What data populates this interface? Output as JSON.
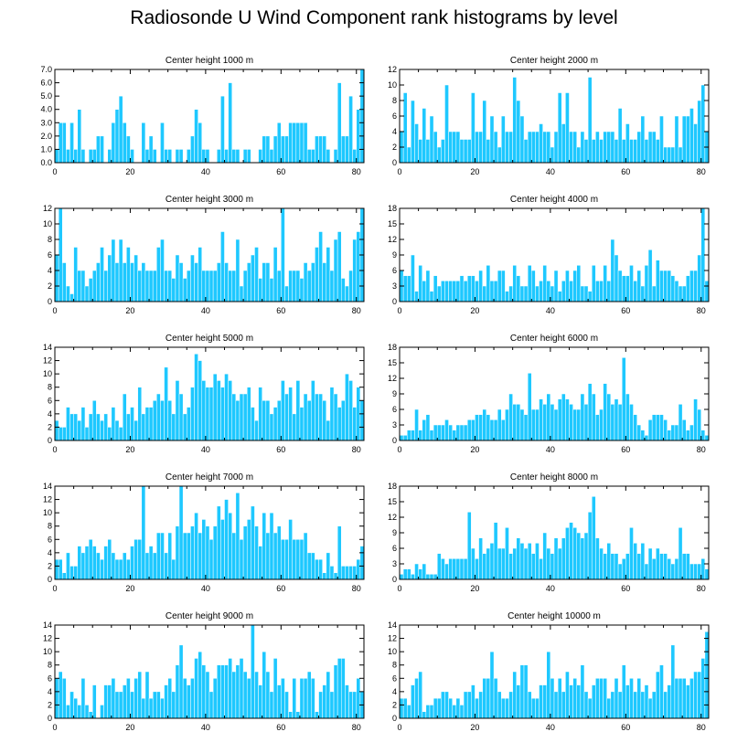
{
  "figure_title": "Radiosonde U Wind Component rank histograms by level",
  "colors": {
    "bar": "#1ec8ff",
    "bar_edge": "#ffffff",
    "axis": "#000000",
    "background": "#ffffff"
  },
  "chart_data": [
    {
      "type": "bar",
      "title": "Center height 1000 m",
      "xlim": [
        0,
        82
      ],
      "ylim": [
        0,
        7
      ],
      "xticks": [
        0,
        20,
        40,
        60,
        80
      ],
      "yticks": [
        0,
        1,
        2,
        3,
        4,
        5,
        6,
        7
      ],
      "ytick_labels": [
        "0.0",
        "1.0",
        "2.0",
        "3.0",
        "4.0",
        "5.0",
        "6.0",
        "7.0"
      ],
      "values": [
        1,
        3,
        3,
        1,
        3,
        1,
        4,
        1,
        0,
        1,
        1,
        2,
        2,
        0,
        1,
        3,
        4,
        5,
        3,
        2,
        1,
        0,
        0,
        3,
        1,
        2,
        1,
        0,
        3,
        1,
        1,
        0,
        1,
        1,
        0,
        1,
        2,
        4,
        3,
        1,
        1,
        0,
        0,
        1,
        5,
        1,
        6,
        1,
        1,
        0,
        1,
        1,
        0,
        0,
        1,
        2,
        2,
        1,
        2,
        3,
        2,
        2,
        3,
        3,
        3,
        3,
        3,
        1,
        1,
        2,
        2,
        2,
        1,
        0,
        1,
        6,
        2,
        2,
        5,
        1,
        4,
        7
      ]
    },
    {
      "type": "bar",
      "title": "Center height 2000 m",
      "xlim": [
        0,
        82
      ],
      "ylim": [
        0,
        12
      ],
      "xticks": [
        0,
        20,
        40,
        60,
        80
      ],
      "yticks": [
        0,
        2,
        4,
        6,
        8,
        10,
        12
      ],
      "ytick_labels": [
        "0",
        "2",
        "4",
        "6",
        "8",
        "10",
        "12"
      ],
      "values": [
        4,
        9,
        2,
        8,
        5,
        3,
        7,
        3,
        6,
        4,
        2,
        3,
        10,
        4,
        4,
        4,
        3,
        3,
        3,
        9,
        4,
        4,
        8,
        3,
        6,
        4,
        2,
        6,
        4,
        4,
        11,
        8,
        6,
        3,
        4,
        4,
        4,
        5,
        4,
        4,
        2,
        4,
        9,
        5,
        9,
        4,
        4,
        2,
        4,
        3,
        11,
        3,
        4,
        3,
        4,
        4,
        4,
        3,
        7,
        3,
        5,
        3,
        3,
        4,
        6,
        3,
        4,
        4,
        3,
        6,
        2,
        2,
        2,
        6,
        2,
        6,
        6,
        7,
        5,
        8,
        10,
        4
      ]
    },
    {
      "type": "bar",
      "title": "Center height 3000 m",
      "xlim": [
        0,
        82
      ],
      "ylim": [
        0,
        12
      ],
      "xticks": [
        0,
        20,
        40,
        60,
        80
      ],
      "yticks": [
        0,
        2,
        4,
        6,
        8,
        10,
        12
      ],
      "ytick_labels": [
        "0",
        "2",
        "4",
        "6",
        "8",
        "10",
        "12"
      ],
      "values": [
        6,
        12,
        5,
        2,
        1,
        7,
        4,
        4,
        2,
        3,
        4,
        5,
        7,
        4,
        6,
        8,
        5,
        8,
        5,
        7,
        5,
        6,
        4,
        5,
        4,
        4,
        4,
        7,
        8,
        4,
        4,
        3,
        6,
        5,
        3,
        4,
        6,
        5,
        7,
        4,
        4,
        4,
        4,
        5,
        9,
        5,
        4,
        4,
        8,
        2,
        4,
        5,
        6,
        7,
        3,
        5,
        5,
        3,
        7,
        4,
        12,
        2,
        4,
        4,
        4,
        3,
        5,
        4,
        5,
        7,
        9,
        5,
        7,
        4,
        8,
        9,
        3,
        2,
        4,
        8,
        9,
        12
      ]
    },
    {
      "type": "bar",
      "title": "Center height 4000 m",
      "xlim": [
        0,
        82
      ],
      "ylim": [
        0,
        18
      ],
      "xticks": [
        0,
        20,
        40,
        60,
        80
      ],
      "yticks": [
        0,
        3,
        6,
        9,
        12,
        15,
        18
      ],
      "ytick_labels": [
        "0",
        "3",
        "6",
        "9",
        "12",
        "15",
        "18"
      ],
      "values": [
        6,
        5,
        5,
        9,
        2,
        7,
        4,
        6,
        2,
        5,
        3,
        4,
        4,
        4,
        4,
        4,
        5,
        4,
        5,
        5,
        4,
        6,
        3,
        7,
        4,
        4,
        6,
        6,
        2,
        3,
        7,
        5,
        3,
        3,
        7,
        6,
        3,
        4,
        7,
        4,
        3,
        6,
        2,
        4,
        6,
        4,
        6,
        7,
        3,
        3,
        2,
        7,
        4,
        4,
        7,
        4,
        12,
        9,
        6,
        5,
        5,
        7,
        4,
        6,
        3,
        7,
        10,
        3,
        8,
        6,
        6,
        6,
        5,
        4,
        3,
        3,
        5,
        6,
        6,
        9,
        18,
        4
      ]
    },
    {
      "type": "bar",
      "title": "Center height 5000 m",
      "xlim": [
        0,
        82
      ],
      "ylim": [
        0,
        14
      ],
      "xticks": [
        0,
        20,
        40,
        60,
        80
      ],
      "yticks": [
        0,
        2,
        4,
        6,
        8,
        10,
        12,
        14
      ],
      "ytick_labels": [
        "0",
        "2",
        "4",
        "6",
        "8",
        "10",
        "12",
        "14"
      ],
      "values": [
        3,
        2,
        2,
        5,
        4,
        4,
        3,
        5,
        2,
        4,
        6,
        4,
        3,
        4,
        2,
        5,
        3,
        2,
        7,
        4,
        5,
        3,
        8,
        4,
        5,
        5,
        6,
        7,
        6,
        11,
        6,
        4,
        9,
        7,
        4,
        5,
        8,
        13,
        12,
        9,
        8,
        8,
        10,
        9,
        8,
        10,
        9,
        7,
        6,
        7,
        7,
        8,
        5,
        3,
        8,
        6,
        6,
        4,
        5,
        6,
        9,
        7,
        8,
        4,
        9,
        5,
        7,
        6,
        9,
        7,
        7,
        6,
        3,
        8,
        7,
        5,
        6,
        10,
        9,
        5,
        8,
        6
      ]
    },
    {
      "type": "bar",
      "title": "Center height 6000 m",
      "xlim": [
        0,
        82
      ],
      "ylim": [
        0,
        18
      ],
      "xticks": [
        0,
        20,
        40,
        60,
        80
      ],
      "yticks": [
        0,
        3,
        6,
        9,
        12,
        15,
        18
      ],
      "ytick_labels": [
        "0",
        "3",
        "6",
        "9",
        "12",
        "15",
        "18"
      ],
      "values": [
        1,
        1,
        2,
        2,
        6,
        2,
        4,
        5,
        2,
        3,
        3,
        3,
        4,
        3,
        2,
        3,
        3,
        3,
        4,
        4,
        5,
        5,
        6,
        5,
        4,
        4,
        6,
        4,
        6,
        9,
        7,
        7,
        6,
        5,
        13,
        6,
        6,
        8,
        7,
        9,
        7,
        6,
        8,
        9,
        8,
        7,
        6,
        6,
        9,
        7,
        11,
        9,
        5,
        6,
        11,
        9,
        7,
        8,
        7,
        16,
        9,
        7,
        5,
        3,
        2,
        1,
        4,
        5,
        5,
        5,
        4,
        2,
        3,
        3,
        7,
        4,
        2,
        3,
        8,
        6,
        2,
        1
      ]
    },
    {
      "type": "bar",
      "title": "Center height 7000 m",
      "xlim": [
        0,
        82
      ],
      "ylim": [
        0,
        14
      ],
      "xticks": [
        0,
        20,
        40,
        60,
        80
      ],
      "yticks": [
        0,
        2,
        4,
        6,
        8,
        10,
        12,
        14
      ],
      "ytick_labels": [
        "0",
        "2",
        "4",
        "6",
        "8",
        "10",
        "12",
        "14"
      ],
      "values": [
        3,
        3,
        1,
        4,
        2,
        2,
        5,
        4,
        5,
        6,
        5,
        4,
        3,
        5,
        6,
        4,
        3,
        3,
        4,
        3,
        5,
        6,
        6,
        14,
        4,
        5,
        4,
        7,
        7,
        4,
        7,
        3,
        8,
        14,
        7,
        7,
        8,
        10,
        7,
        9,
        8,
        6,
        8,
        11,
        9,
        12,
        10,
        7,
        13,
        6,
        8,
        9,
        11,
        8,
        5,
        10,
        7,
        10,
        7,
        8,
        6,
        6,
        9,
        6,
        6,
        6,
        7,
        4,
        4,
        3,
        3,
        1,
        4,
        2,
        1,
        8,
        2,
        2,
        2,
        2,
        3,
        5
      ]
    },
    {
      "type": "bar",
      "title": "Center height 8000 m",
      "xlim": [
        0,
        82
      ],
      "ylim": [
        0,
        18
      ],
      "xticks": [
        0,
        20,
        40,
        60,
        80
      ],
      "yticks": [
        0,
        3,
        6,
        9,
        12,
        15,
        18
      ],
      "ytick_labels": [
        "0",
        "3",
        "6",
        "9",
        "12",
        "15",
        "18"
      ],
      "values": [
        1,
        2,
        2,
        1,
        3,
        2,
        3,
        1,
        1,
        1,
        5,
        4,
        3,
        4,
        4,
        4,
        4,
        4,
        13,
        6,
        4,
        8,
        5,
        6,
        7,
        11,
        6,
        6,
        10,
        5,
        6,
        8,
        7,
        6,
        7,
        5,
        7,
        4,
        9,
        6,
        5,
        8,
        6,
        8,
        10,
        11,
        10,
        9,
        8,
        9,
        13,
        16,
        8,
        6,
        5,
        7,
        5,
        5,
        3,
        4,
        5,
        10,
        7,
        5,
        7,
        3,
        6,
        4,
        6,
        5,
        5,
        4,
        3,
        4,
        10,
        5,
        5,
        3,
        3,
        3,
        4,
        2
      ]
    },
    {
      "type": "bar",
      "title": "Center height 9000 m",
      "xlim": [
        0,
        82
      ],
      "ylim": [
        0,
        14
      ],
      "xticks": [
        0,
        20,
        40,
        60,
        80
      ],
      "yticks": [
        0,
        2,
        4,
        6,
        8,
        10,
        12,
        14
      ],
      "ytick_labels": [
        "0",
        "2",
        "4",
        "6",
        "8",
        "10",
        "12",
        "14"
      ],
      "values": [
        6,
        7,
        6,
        2,
        4,
        3,
        2,
        6,
        2,
        1,
        5,
        0,
        2,
        5,
        5,
        6,
        4,
        4,
        5,
        6,
        4,
        6,
        7,
        3,
        7,
        3,
        4,
        4,
        3,
        5,
        6,
        4,
        8,
        11,
        6,
        5,
        6,
        9,
        10,
        8,
        7,
        4,
        6,
        8,
        8,
        8,
        9,
        7,
        8,
        9,
        7,
        6,
        14,
        7,
        5,
        10,
        7,
        4,
        9,
        5,
        6,
        4,
        1,
        6,
        1,
        6,
        6,
        7,
        6,
        1,
        4,
        5,
        7,
        4,
        8,
        9,
        9,
        5,
        4,
        4,
        6,
        4
      ]
    },
    {
      "type": "bar",
      "title": "Center height 10000 m",
      "xlim": [
        0,
        82
      ],
      "ylim": [
        0,
        14
      ],
      "xticks": [
        0,
        20,
        40,
        60,
        80
      ],
      "yticks": [
        0,
        2,
        4,
        6,
        8,
        10,
        12,
        14
      ],
      "ytick_labels": [
        "0",
        "2",
        "4",
        "6",
        "8",
        "10",
        "12",
        "14"
      ],
      "values": [
        3,
        3,
        2,
        5,
        6,
        7,
        1,
        2,
        2,
        3,
        3,
        4,
        4,
        3,
        2,
        3,
        2,
        4,
        4,
        5,
        3,
        4,
        6,
        6,
        10,
        6,
        4,
        3,
        3,
        4,
        7,
        5,
        8,
        8,
        4,
        3,
        3,
        5,
        5,
        10,
        6,
        4,
        6,
        4,
        7,
        5,
        6,
        5,
        8,
        4,
        3,
        5,
        6,
        6,
        6,
        3,
        4,
        6,
        4,
        8,
        5,
        6,
        4,
        6,
        4,
        5,
        3,
        4,
        7,
        8,
        4,
        5,
        11,
        6,
        6,
        6,
        5,
        6,
        7,
        7,
        9,
        13
      ]
    }
  ]
}
